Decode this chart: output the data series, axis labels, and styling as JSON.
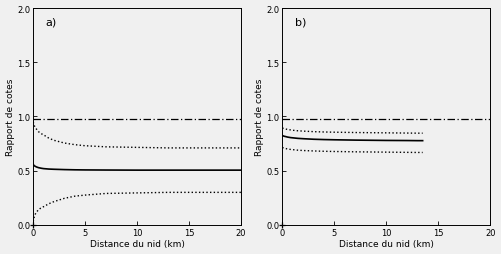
{
  "title_a": "a)",
  "title_b": "b)",
  "xlabel": "Distance du nid (km)",
  "ylabel": "Rapport de cotes",
  "xlim": [
    0,
    20
  ],
  "ylim": [
    0.0,
    2.0
  ],
  "xticks": [
    0,
    5,
    10,
    15,
    20
  ],
  "yticks": [
    0.0,
    0.5,
    1.0,
    1.5,
    2.0
  ],
  "background_color": "#f0f0f0",
  "line_color": "#000000",
  "panel_a": {
    "x": [
      0,
      0.05,
      0.1,
      0.2,
      0.3,
      0.5,
      0.8,
      1.0,
      1.5,
      2.0,
      3.0,
      4.0,
      5.0,
      7.0,
      10.0,
      13.0,
      15.0,
      17.0,
      20.0
    ],
    "solid": [
      0.56,
      0.55,
      0.545,
      0.54,
      0.535,
      0.528,
      0.522,
      0.519,
      0.515,
      0.513,
      0.51,
      0.508,
      0.507,
      0.506,
      0.505,
      0.505,
      0.505,
      0.505,
      0.505
    ],
    "upper_ci": [
      0.95,
      0.93,
      0.915,
      0.9,
      0.885,
      0.86,
      0.84,
      0.83,
      0.8,
      0.78,
      0.755,
      0.74,
      0.73,
      0.72,
      0.715,
      0.71,
      0.71,
      0.71,
      0.71
    ],
    "lower_ci": [
      0.03,
      0.055,
      0.075,
      0.1,
      0.115,
      0.14,
      0.16,
      0.168,
      0.195,
      0.215,
      0.245,
      0.265,
      0.275,
      0.29,
      0.295,
      0.3,
      0.3,
      0.3,
      0.3
    ],
    "ref_line": 0.975
  },
  "panel_b": {
    "x": [
      0,
      0.05,
      0.1,
      0.2,
      0.3,
      0.5,
      0.8,
      1.0,
      1.5,
      2.0,
      3.0,
      4.0,
      5.0,
      7.0,
      10.0,
      12.0,
      13.0,
      13.5
    ],
    "solid": [
      0.825,
      0.822,
      0.82,
      0.817,
      0.815,
      0.81,
      0.805,
      0.803,
      0.798,
      0.795,
      0.79,
      0.787,
      0.785,
      0.782,
      0.779,
      0.778,
      0.777,
      0.777
    ],
    "upper_ci": [
      0.895,
      0.892,
      0.89,
      0.887,
      0.885,
      0.88,
      0.876,
      0.873,
      0.868,
      0.865,
      0.86,
      0.857,
      0.855,
      0.852,
      0.849,
      0.847,
      0.846,
      0.846
    ],
    "lower_ci": [
      0.715,
      0.712,
      0.71,
      0.707,
      0.705,
      0.7,
      0.696,
      0.694,
      0.689,
      0.686,
      0.682,
      0.679,
      0.677,
      0.674,
      0.671,
      0.669,
      0.668,
      0.668
    ],
    "ref_line": 0.975
  }
}
